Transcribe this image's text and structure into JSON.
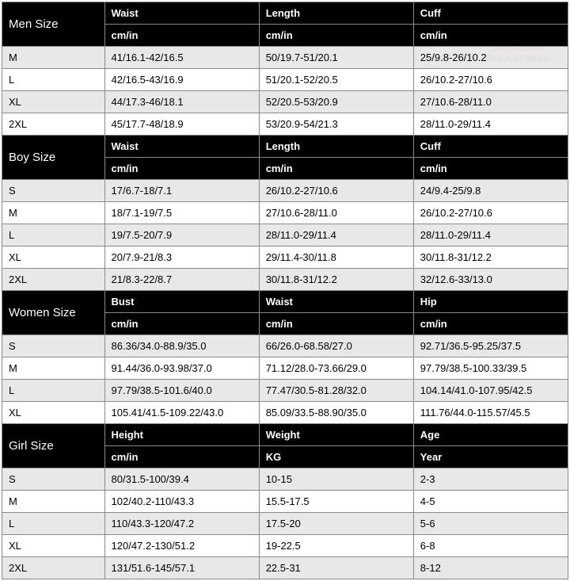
{
  "watermark": {
    "line1": "beautyartisan",
    "line2": "Beauty&Fashion"
  },
  "colors": {
    "header_bg": "#000000",
    "header_text": "#ffffff",
    "row_light_bg": "#e8e8e8",
    "row_white_bg": "#ffffff",
    "text": "#000000",
    "border": "#8a8a8a"
  },
  "sections": [
    {
      "title": "Men Size",
      "columns": [
        {
          "name": "Waist",
          "unit": "cm/in"
        },
        {
          "name": "Length",
          "unit": "cm/in"
        },
        {
          "name": "Cuff",
          "unit": "cm/in"
        }
      ],
      "rows": [
        {
          "size": "M",
          "cells": [
            "41/16.1-42/16.5",
            "50/19.7-51/20.1",
            "25/9.8-26/10.2"
          ]
        },
        {
          "size": "L",
          "cells": [
            "42/16.5-43/16.9",
            "51/20.1-52/20.5",
            "26/10.2-27/10.6"
          ]
        },
        {
          "size": "XL",
          "cells": [
            "44/17.3-46/18.1",
            "52/20.5-53/20.9",
            "27/10.6-28/11.0"
          ]
        },
        {
          "size": "2XL",
          "cells": [
            "45/17.7-48/18.9",
            "53/20.9-54/21.3",
            "28/11.0-29/11.4"
          ]
        }
      ]
    },
    {
      "title": "Boy Size",
      "columns": [
        {
          "name": "Waist",
          "unit": "cm/in"
        },
        {
          "name": "Length",
          "unit": "cm/in"
        },
        {
          "name": "Cuff",
          "unit": "cm/in"
        }
      ],
      "rows": [
        {
          "size": "S",
          "cells": [
            "17/6.7-18/7.1",
            "26/10.2-27/10.6",
            "24/9.4-25/9.8"
          ]
        },
        {
          "size": "M",
          "cells": [
            "18/7.1-19/7.5",
            "27/10.6-28/11.0",
            "26/10.2-27/10.6"
          ]
        },
        {
          "size": "L",
          "cells": [
            "19/7.5-20/7.9",
            "28/11.0-29/11.4",
            "28/11.0-29/11.4"
          ]
        },
        {
          "size": "XL",
          "cells": [
            "20/7.9-21/8.3",
            "29/11.4-30/11.8",
            "30/11.8-31/12.2"
          ]
        },
        {
          "size": "2XL",
          "cells": [
            "21/8.3-22/8.7",
            "30/11.8-31/12.2",
            "32/12.6-33/13.0"
          ]
        }
      ]
    },
    {
      "title": "Women Size",
      "columns": [
        {
          "name": "Bust",
          "unit": "cm/in"
        },
        {
          "name": "Waist",
          "unit": "cm/in"
        },
        {
          "name": "Hip",
          "unit": "cm/in"
        }
      ],
      "rows": [
        {
          "size": "S",
          "cells": [
            "86.36/34.0-88.9/35.0",
            "66/26.0-68.58/27.0",
            "92.71/36.5-95.25/37.5"
          ]
        },
        {
          "size": "M",
          "cells": [
            "91.44/36.0-93.98/37.0",
            "71.12/28.0-73.66/29.0",
            "97.79/38.5-100.33/39.5"
          ]
        },
        {
          "size": "L",
          "cells": [
            "97.79/38.5-101.6/40.0",
            "77.47/30.5-81.28/32.0",
            "104.14/41.0-107.95/42.5"
          ]
        },
        {
          "size": "XL",
          "cells": [
            "105.41/41.5-109.22/43.0",
            "85.09/33.5-88.90/35.0",
            "111.76/44.0-115.57/45.5"
          ]
        }
      ]
    },
    {
      "title": "Girl Size",
      "columns": [
        {
          "name": "Height",
          "unit": "cm/in"
        },
        {
          "name": "Weight",
          "unit": "KG"
        },
        {
          "name": "Age",
          "unit": "Year"
        }
      ],
      "rows": [
        {
          "size": "S",
          "cells": [
            "80/31.5-100/39.4",
            "10-15",
            "2-3"
          ]
        },
        {
          "size": "M",
          "cells": [
            "102/40.2-110/43.3",
            "15.5-17.5",
            "4-5"
          ]
        },
        {
          "size": "L",
          "cells": [
            "110/43.3-120/47.2",
            "17.5-20",
            "5-6"
          ]
        },
        {
          "size": "XL",
          "cells": [
            "120/47.2-130/51.2",
            "19-22.5",
            "6-8"
          ]
        },
        {
          "size": "2XL",
          "cells": [
            "131/51.6-145/57.1",
            "22.5-31",
            "8-12"
          ]
        }
      ]
    }
  ]
}
